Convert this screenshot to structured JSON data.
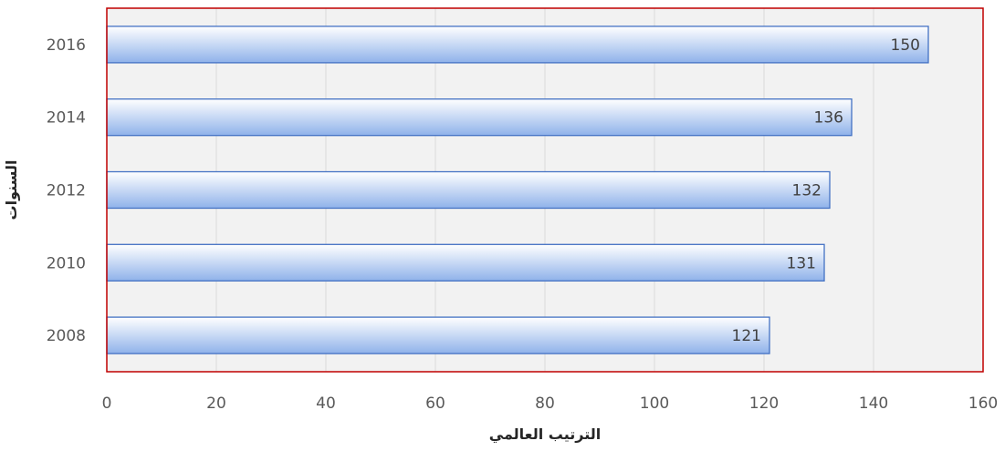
{
  "chart_data": {
    "type": "bar",
    "orientation": "horizontal",
    "categories": [
      "2016",
      "2014",
      "2012",
      "2010",
      "2008"
    ],
    "values": [
      150,
      136,
      132,
      131,
      121
    ],
    "title": "",
    "xlabel": "الترتيب العالمي",
    "ylabel": "السنوات",
    "xlim": [
      0,
      160
    ],
    "x_ticks": [
      0,
      20,
      40,
      60,
      80,
      100,
      120,
      140,
      160
    ],
    "grid": "vertical",
    "data_labels": "inside-end",
    "legend": "none",
    "colors": {
      "plot_background": "#f2f2f2",
      "plot_border": "#c00000",
      "gridline": "#d9d9d9",
      "bar_fill_top": "#ffffff",
      "bar_fill_bottom": "#8fb2ea",
      "bar_border": "#4472c4"
    }
  }
}
